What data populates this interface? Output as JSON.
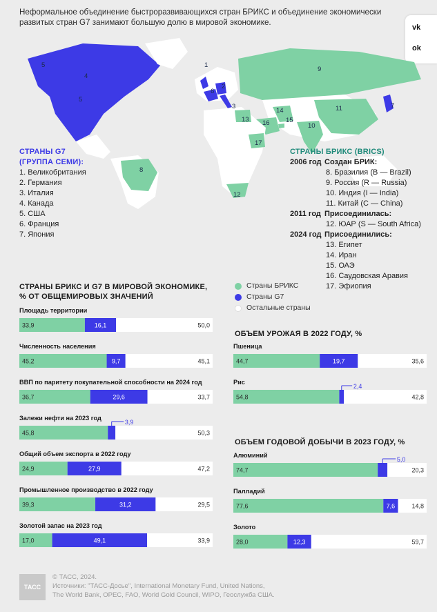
{
  "intro": "Неформальное объединение быстроразвивающихся стран БРИКС и объединение экономически развитых стран G7 занимают большую долю в мировой экономике.",
  "social": {
    "vk": "vk",
    "ok": "ok"
  },
  "colors": {
    "brics": "#7fd1a4",
    "g7": "#3d3ae6",
    "other": "#ffffff",
    "land": "#ffffff"
  },
  "map_labels": [
    "1",
    "2",
    "3",
    "4",
    "5",
    "5",
    "6",
    "7",
    "8",
    "9",
    "10",
    "11",
    "12",
    "13",
    "14",
    "15",
    "16",
    "17"
  ],
  "g7": {
    "title_line1": "СТРАНЫ G7",
    "title_line2": "(ГРУППА СЕМИ):",
    "members": [
      "1. Великобритания",
      "2. Германия",
      "3. Италия",
      "4. Канада",
      "5. США",
      "6. Франция",
      "7. Япония"
    ]
  },
  "brics": {
    "title": "СТРАНЫ БРИКС (BRICS)",
    "groups": [
      {
        "year": "2006 год",
        "label": "Создан БРИК:",
        "members": [
          "8. Бразилия (B — Brazil)",
          "9. Россия (R — Russia)",
          "10. Индия (I — India)",
          "11. Китай (C — China)"
        ]
      },
      {
        "year": "2011 год",
        "label": "Присоединилась:",
        "members": [
          "12. ЮАР (S — South Africa)"
        ]
      },
      {
        "year": "2024 год",
        "label": "Присоединились:",
        "members": [
          "13. Египет",
          "14. Иран",
          "15. ОАЭ",
          "16. Саудовская Аравия",
          "17. Эфиопия"
        ]
      }
    ]
  },
  "legend": [
    "Страны БРИКС",
    "Страны G7",
    "Остальные страны"
  ],
  "sections": {
    "economy": [
      "СТРАНЫ БРИКС И G7 В МИРОВОЙ ЭКОНОМИКЕ,",
      "% ОТ ОБЩЕМИРОВЫХ ЗНАЧЕНИЙ"
    ],
    "harvest": "ОБЪЕМ УРОЖАЯ В 2022 ГОДУ, %",
    "mining": "ОБЪЕМ ГОДОВОЙ ДОБЫЧИ В 2023 ГОДУ, %"
  },
  "chart_data": [
    {
      "type": "bar",
      "stacked": true,
      "title": "СТРАНЫ БРИКС И G7 В МИРОВОЙ ЭКОНОМИКЕ, % ОТ ОБЩЕМИРОВЫХ ЗНАЧЕНИЙ",
      "series_names": [
        "Страны БРИКС",
        "Страны G7",
        "Остальные страны"
      ],
      "bars": [
        {
          "label": "Площадь территории",
          "values": [
            33.9,
            16.1,
            50.0
          ],
          "display": [
            "33,9",
            "16,1",
            "50,0"
          ]
        },
        {
          "label": "Численность населения",
          "values": [
            45.2,
            9.7,
            45.1
          ],
          "display": [
            "45,2",
            "9,7",
            "45,1"
          ]
        },
        {
          "label": "ВВП по паритету покупательной способности на 2024 год",
          "values": [
            36.7,
            29.6,
            33.7
          ],
          "display": [
            "36,7",
            "29,6",
            "33,7"
          ]
        },
        {
          "label": "Залежи нефти на 2023 год",
          "values": [
            45.8,
            3.9,
            50.3
          ],
          "display": [
            "45,8",
            "3,9",
            "50,3"
          ]
        },
        {
          "label": "Общий объем экспорта в 2022 году",
          "values": [
            24.9,
            27.9,
            47.2
          ],
          "display": [
            "24,9",
            "27,9",
            "47,2"
          ]
        },
        {
          "label": "Промышленное производство в 2022 году",
          "values": [
            39.3,
            31.2,
            29.5
          ],
          "display": [
            "39,3",
            "31,2",
            "29,5"
          ]
        },
        {
          "label": "Золотой запас на 2023 год",
          "values": [
            17.0,
            49.1,
            33.9
          ],
          "display": [
            "17,0",
            "49,1",
            "33,9"
          ]
        }
      ]
    },
    {
      "type": "bar",
      "stacked": true,
      "title": "ОБЪЕМ УРОЖАЯ В 2022 ГОДУ, %",
      "bars": [
        {
          "label": "Пшеница",
          "values": [
            44.7,
            19.7,
            35.6
          ],
          "display": [
            "44,7",
            "19,7",
            "35,6"
          ]
        },
        {
          "label": "Рис",
          "values": [
            54.8,
            2.4,
            42.8
          ],
          "display": [
            "54,8",
            "2,4",
            "42,8"
          ]
        }
      ]
    },
    {
      "type": "bar",
      "stacked": true,
      "title": "ОБЪЕМ ГОДОВОЙ ДОБЫЧИ В 2023 ГОДУ, %",
      "bars": [
        {
          "label": "Алюминий",
          "values": [
            74.7,
            5.0,
            20.3
          ],
          "display": [
            "74,7",
            "5,0",
            "20,3"
          ]
        },
        {
          "label": "Палладий",
          "values": [
            77.6,
            7.6,
            14.8
          ],
          "display": [
            "77,6",
            "7,6",
            "14,8"
          ]
        },
        {
          "label": "Золото",
          "values": [
            28.0,
            12.3,
            59.7
          ],
          "display": [
            "28,0",
            "12,3",
            "59,7"
          ]
        }
      ]
    }
  ],
  "footer": {
    "logo": "ТАСС",
    "line1": "© ТАСС, 2024.",
    "line2": "Источники: \"ТАСС-Досье\", International Monetary Fund, United Nations,",
    "line3": "The World Bank, OPEC, FAO, World Gold Council, WIPO, Геослужба США."
  }
}
